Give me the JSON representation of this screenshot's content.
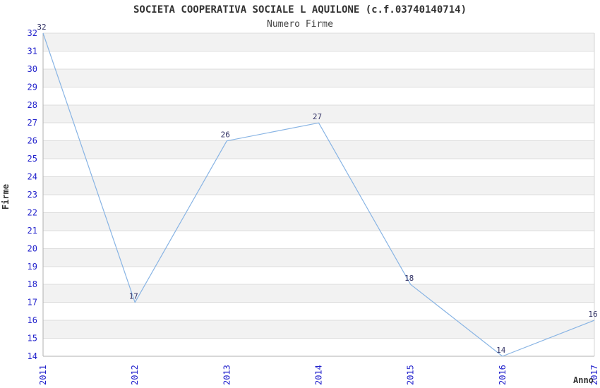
{
  "chart_data": {
    "type": "line",
    "title": "SOCIETA COOPERATIVA SOCIALE L AQUILONE (c.f.03740140714)",
    "subtitle": "Numero Firme",
    "xlabel": "Anno",
    "ylabel": "Firme",
    "categories": [
      "2011",
      "2012",
      "2013",
      "2014",
      "2015",
      "2016",
      "2017"
    ],
    "values": [
      32,
      17,
      26,
      27,
      18,
      14,
      16
    ],
    "ylim": [
      14,
      32
    ],
    "ytick_step": 1,
    "grid": true,
    "legend": "none",
    "band_fill": "#f2f2f2",
    "colors": {
      "line": "#88b4e4",
      "tick_label": "#2222cc",
      "data_label": "#333366",
      "title": "#333333",
      "axis": "#b0b0b0",
      "right_border": "#d4d4d4",
      "grid": "#dcdcdc"
    }
  }
}
